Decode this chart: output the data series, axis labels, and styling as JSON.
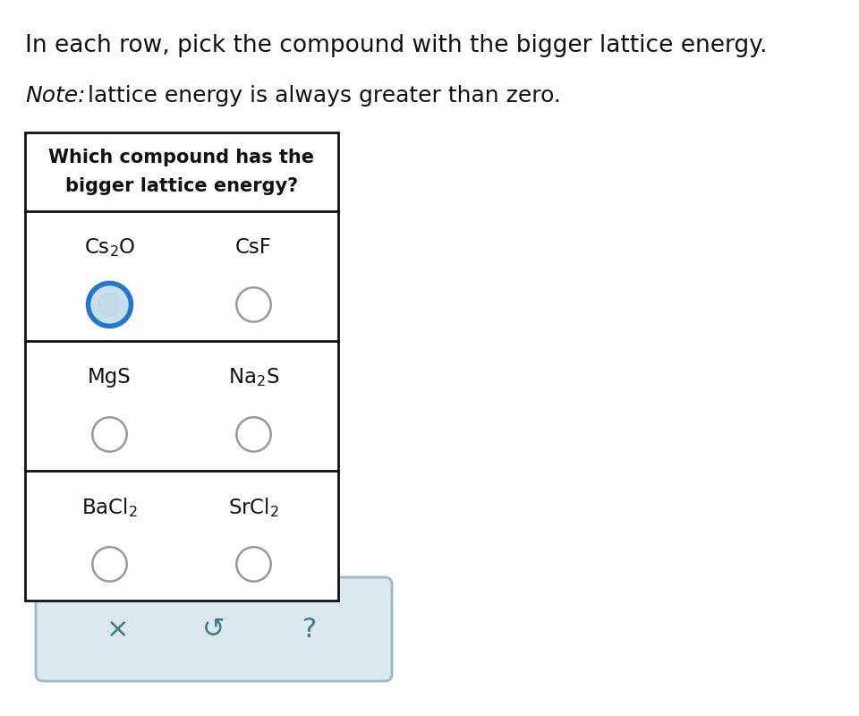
{
  "title_text": "In each row, pick the compound with the bigger lattice energy.",
  "note_italic": "Note:",
  "note_rest": " lattice energy is always greater than zero.",
  "header_line1": "Which compound has the",
  "header_line2": "bigger lattice energy?",
  "rows": [
    {
      "left": "Cs$_2$O",
      "right": "CsF",
      "left_selected": true,
      "right_selected": false
    },
    {
      "left": "MgS",
      "right": "Na$_2$S",
      "left_selected": false,
      "right_selected": false
    },
    {
      "left": "BaCl$_2$",
      "right": "SrCl$_2$",
      "left_selected": false,
      "right_selected": false
    }
  ],
  "button_symbols": [
    "×",
    "↺",
    "?"
  ],
  "bg_color": "#ffffff",
  "table_border_color": "#111111",
  "selected_circle_color": "#2277cc",
  "selected_circle_inner": "#c8dff0",
  "unselected_circle_color": "#999999",
  "button_bg": "#dde8ee",
  "button_border": "#98bbc8",
  "button_icon_color": "#3a7a8a",
  "title_color": "#111111",
  "note_color": "#111111",
  "text_color": "#111111",
  "fig_width": 9.6,
  "fig_height": 8.0,
  "dpi": 100
}
